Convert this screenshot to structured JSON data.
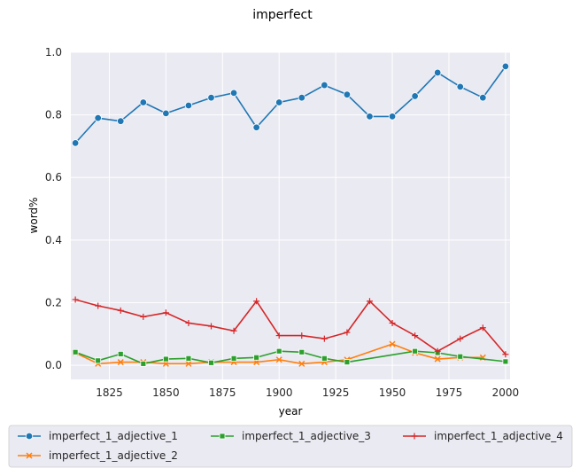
{
  "chart_data": {
    "type": "line",
    "title": "imperfect",
    "xlabel": "year",
    "ylabel": "word%",
    "xlim": [
      1808,
      2002
    ],
    "ylim": [
      -0.045,
      1.0
    ],
    "xticks": [
      1825,
      1850,
      1875,
      1900,
      1925,
      1950,
      1975,
      2000
    ],
    "yticks": [
      0.0,
      0.2,
      0.4,
      0.6,
      0.8,
      1.0
    ],
    "grid": true,
    "legend_position": "bottom",
    "series": [
      {
        "name": "imperfect_1_adjective_1",
        "color": "#1f77b4",
        "marker": "circle",
        "x": [
          1810,
          1820,
          1830,
          1840,
          1850,
          1860,
          1870,
          1880,
          1890,
          1900,
          1910,
          1920,
          1930,
          1940,
          1950,
          1960,
          1970,
          1980,
          1990,
          2000
        ],
        "y": [
          0.71,
          0.79,
          0.78,
          0.84,
          0.805,
          0.83,
          0.855,
          0.87,
          0.76,
          0.84,
          0.855,
          0.895,
          0.865,
          0.795,
          0.795,
          0.86,
          0.935,
          0.89,
          0.855,
          0.955
        ]
      },
      {
        "name": "imperfect_1_adjective_2",
        "color": "#ff7f0e",
        "marker": "x",
        "x": [
          1810,
          1820,
          1830,
          1840,
          1850,
          1860,
          1870,
          1880,
          1890,
          1900,
          1910,
          1920,
          1930,
          1950,
          1960,
          1970,
          1980,
          1990
        ],
        "y": [
          0.04,
          0.005,
          0.01,
          0.01,
          0.005,
          0.005,
          0.01,
          0.01,
          0.01,
          0.018,
          0.005,
          0.01,
          0.018,
          0.068,
          0.04,
          0.02,
          0.025,
          0.025
        ]
      },
      {
        "name": "imperfect_1_adjective_3",
        "color": "#2ca02c",
        "marker": "square",
        "x": [
          1810,
          1820,
          1830,
          1840,
          1850,
          1860,
          1870,
          1880,
          1890,
          1900,
          1910,
          1920,
          1930,
          1960,
          1970,
          1980,
          2000
        ],
        "y": [
          0.042,
          0.015,
          0.036,
          0.005,
          0.02,
          0.022,
          0.008,
          0.022,
          0.025,
          0.045,
          0.042,
          0.022,
          0.01,
          0.045,
          0.04,
          0.028,
          0.012
        ]
      },
      {
        "name": "imperfect_1_adjective_4",
        "color": "#d62728",
        "marker": "plus",
        "x": [
          1810,
          1820,
          1830,
          1840,
          1850,
          1860,
          1870,
          1880,
          1890,
          1900,
          1910,
          1920,
          1930,
          1940,
          1950,
          1960,
          1970,
          1980,
          1990,
          2000
        ],
        "y": [
          0.21,
          0.19,
          0.175,
          0.155,
          0.168,
          0.135,
          0.125,
          0.11,
          0.205,
          0.095,
          0.095,
          0.085,
          0.105,
          0.205,
          0.135,
          0.095,
          0.045,
          0.085,
          0.12,
          0.035
        ]
      }
    ]
  }
}
